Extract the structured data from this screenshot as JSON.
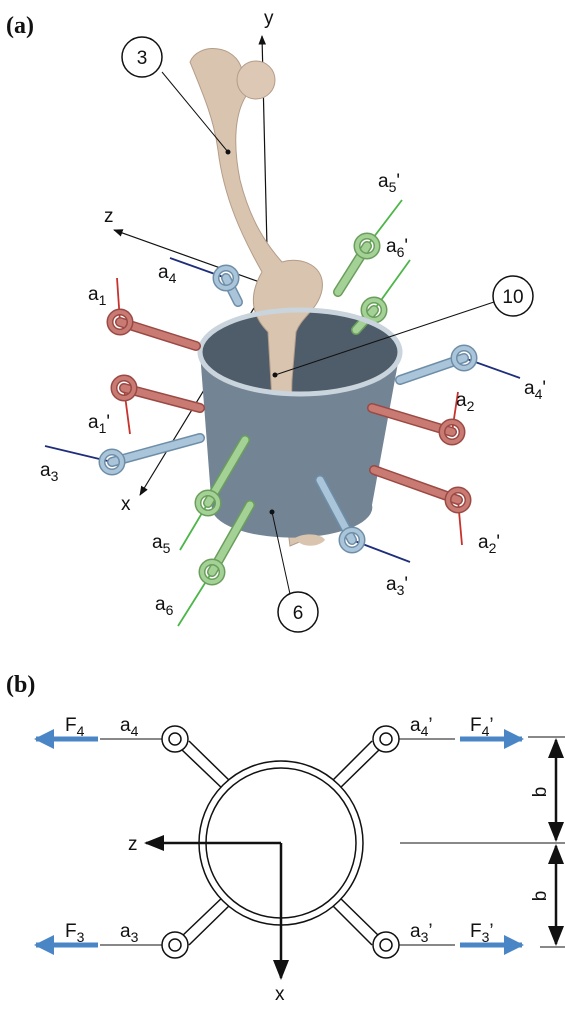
{
  "panel_a": {
    "label": "(a)",
    "axis_y": "y",
    "axis_z": "z",
    "axis_x": "x",
    "callouts": [
      "3",
      "10",
      "6"
    ],
    "pins": [
      {
        "base": "a",
        "sub": "1"
      },
      {
        "base": "a",
        "sub": "1",
        "suffix": "'"
      },
      {
        "base": "a",
        "sub": "2"
      },
      {
        "base": "a",
        "sub": "2",
        "suffix": "'"
      },
      {
        "base": "a",
        "sub": "3"
      },
      {
        "base": "a",
        "sub": "3",
        "suffix": "'"
      },
      {
        "base": "a",
        "sub": "4"
      },
      {
        "base": "a",
        "sub": "4",
        "suffix": "'"
      },
      {
        "base": "a",
        "sub": "5"
      },
      {
        "base": "a",
        "sub": "5",
        "suffix": "'"
      },
      {
        "base": "a",
        "sub": "6"
      },
      {
        "base": "a",
        "sub": "6",
        "suffix": "'"
      }
    ]
  },
  "panel_b": {
    "label": "(b)",
    "axis_z": "z",
    "axis_x": "x",
    "dimension": [
      "b",
      "b"
    ],
    "pins": [
      {
        "base": "a",
        "sub": "4"
      },
      {
        "base": "a",
        "sub": "4",
        "suffix": "’"
      },
      {
        "base": "a",
        "sub": "3"
      },
      {
        "base": "a",
        "sub": "3",
        "suffix": "’"
      }
    ],
    "forces": [
      {
        "base": "F",
        "sub": "4"
      },
      {
        "base": "F",
        "sub": "4",
        "suffix": "’"
      },
      {
        "base": "F",
        "sub": "3"
      },
      {
        "base": "F",
        "sub": "3",
        "suffix": "’"
      }
    ]
  }
}
